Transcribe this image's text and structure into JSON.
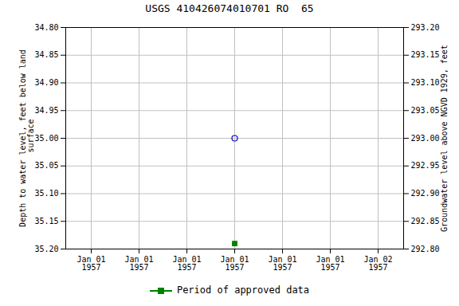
{
  "chart_data": {
    "type": "scatter",
    "title": "USGS 410426074010701 RO  65",
    "y_label": "Depth to water level, feet below land\n surface",
    "y2_label": "Groundwater level above NGVD 1929, feet",
    "categories": [
      "Jan 01\n1957",
      "Jan 01\n1957",
      "Jan 01\n1957",
      "Jan 01\n1957",
      "Jan 01\n1957",
      "Jan 01\n1957",
      "Jan 02\n1957"
    ],
    "series": [
      {
        "color": "#0000cc",
        "marker": "circle",
        "values": [
          null,
          null,
          null,
          35.0,
          null,
          null,
          null
        ]
      },
      {
        "name": "Period of approved data",
        "color": "#008000",
        "marker": "square",
        "values": [
          null,
          null,
          null,
          35.19,
          null,
          null,
          null
        ]
      }
    ],
    "ylim": [
      35.2,
      34.8
    ],
    "yticks": [
      {
        "value": 34.8,
        "label": "34.80"
      },
      34.85,
      {
        "value": 34.9,
        "label": "34.90"
      },
      34.95,
      {
        "value": 35.0,
        "label": "35.00"
      },
      35.05,
      {
        "value": 35.1,
        "label": "35.10"
      },
      35.15,
      {
        "value": 35.2,
        "label": "35.20"
      }
    ],
    "y2lim": [
      292.8,
      293.2
    ],
    "y2ticks": [
      {
        "value": 292.8,
        "label": "292.80"
      },
      292.85,
      {
        "value": 292.9,
        "label": "292.90"
      },
      292.95,
      {
        "value": 293.0,
        "label": "293.00"
      },
      293.05,
      {
        "value": 293.1,
        "label": "293.10"
      },
      293.15,
      {
        "value": 293.2,
        "label": "293.20"
      }
    ],
    "grid": true,
    "legend": "bottom"
  }
}
